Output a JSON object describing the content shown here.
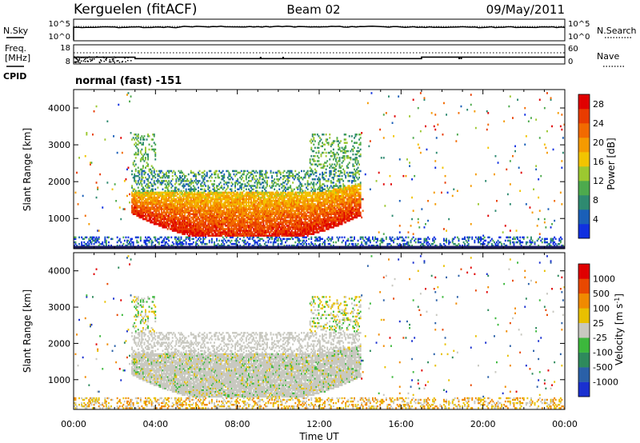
{
  "header": {
    "station": "Kerguelen (fitACF)",
    "beam": "Beam 02",
    "date": "09/May/2011"
  },
  "noise_panel": {
    "left_label": "N.Sky",
    "right_label": "N.Search",
    "left_ticks": [
      "10^5",
      "10^0"
    ],
    "right_ticks": [
      "10^5",
      "10^0"
    ]
  },
  "freq_panel": {
    "left_label_1": "Freq.",
    "left_label_2": "[MHz]",
    "right_label": "Nave",
    "left_ticks": [
      "18",
      "8"
    ],
    "right_ticks": [
      "60",
      "0"
    ],
    "cpid_label": "CPID",
    "mode": "normal (fast) -151",
    "freq_steps": [
      {
        "t0": 0.0,
        "t1": 3.0,
        "value": 11.5
      },
      {
        "t0": 3.0,
        "t1": 17.0,
        "value": 10.8
      },
      {
        "t0": 17.0,
        "t1": 24.0,
        "value": 11.6
      }
    ]
  },
  "colors": {
    "power": [
      "#1030e0",
      "#1a5fb8",
      "#2e8a70",
      "#4daa4d",
      "#9cc830",
      "#f2c400",
      "#f59a00",
      "#f26a00",
      "#e83c00",
      "#e00000"
    ],
    "velocity": [
      "#1a30d0",
      "#2a60a8",
      "#2e8a5c",
      "#3cb83c",
      "#c8c8c0",
      "#e8c000",
      "#f08a00",
      "#e84800",
      "#e00000"
    ]
  },
  "chart_data": [
    {
      "type": "heatmap",
      "name": "power",
      "xlabel": "",
      "ylabel": "Slant Range [km]",
      "xlim": [
        0,
        24
      ],
      "ylim": [
        180,
        4500
      ],
      "yticks": [
        "1000",
        "2000",
        "3000",
        "4000"
      ],
      "colorbar_label": "Power [dB]",
      "colorbar_ticks": [
        "4",
        "8",
        "12",
        "16",
        "20",
        "24",
        "28"
      ],
      "colorbar_range": [
        0,
        30
      ]
    },
    {
      "type": "heatmap",
      "name": "velocity",
      "xlabel": "Time UT",
      "ylabel": "Slant Range [km]",
      "xlim": [
        0,
        24
      ],
      "ylim": [
        180,
        4500
      ],
      "yticks": [
        "1000",
        "2000",
        "3000",
        "4000"
      ],
      "xticks": [
        "00:00",
        "04:00",
        "08:00",
        "12:00",
        "16:00",
        "20:00",
        "00:00"
      ],
      "colorbar_label": "Velocity [m s",
      "colorbar_label_sup": "-1",
      "colorbar_label_end": "]",
      "colorbar_ticks": [
        "-1000",
        "-500",
        "-100",
        "-25",
        "25",
        "100",
        "500",
        "1000"
      ]
    }
  ]
}
